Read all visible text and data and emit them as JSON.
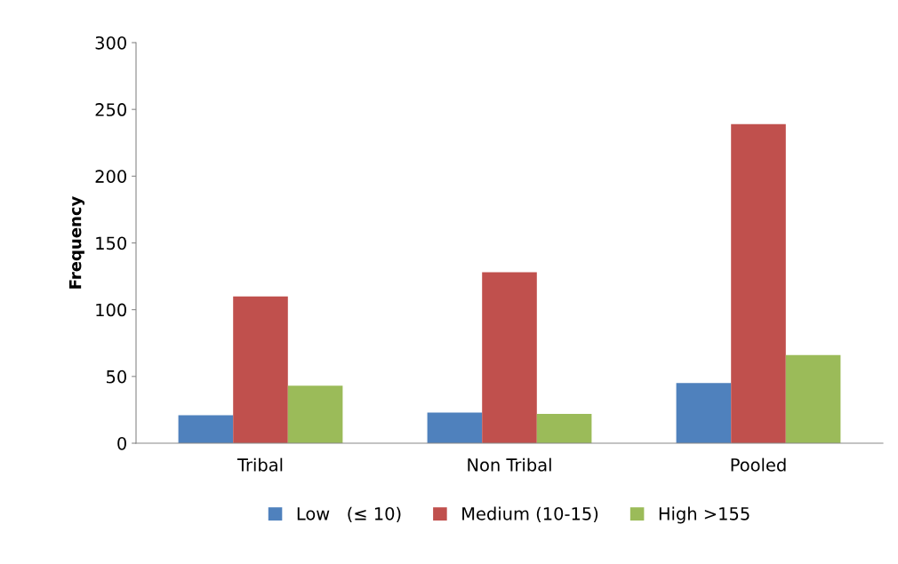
{
  "chart_data": {
    "type": "bar",
    "ylabel": "Frequency",
    "categories": [
      "Tribal",
      "Non Tribal",
      "Pooled"
    ],
    "series": [
      {
        "name": "Low   (≤ 10)",
        "color": "#4f81bd",
        "values": [
          21,
          23,
          45
        ]
      },
      {
        "name": "Medium (10-15)",
        "color": "#c0504d",
        "values": [
          110,
          128,
          239
        ]
      },
      {
        "name": "High >155",
        "color": "#9bbb59",
        "values": [
          43,
          22,
          66
        ]
      }
    ],
    "ylim": [
      0,
      300
    ],
    "yticks": [
      0,
      50,
      100,
      150,
      200,
      250,
      300
    ],
    "grid": false,
    "legend": "bottom"
  }
}
